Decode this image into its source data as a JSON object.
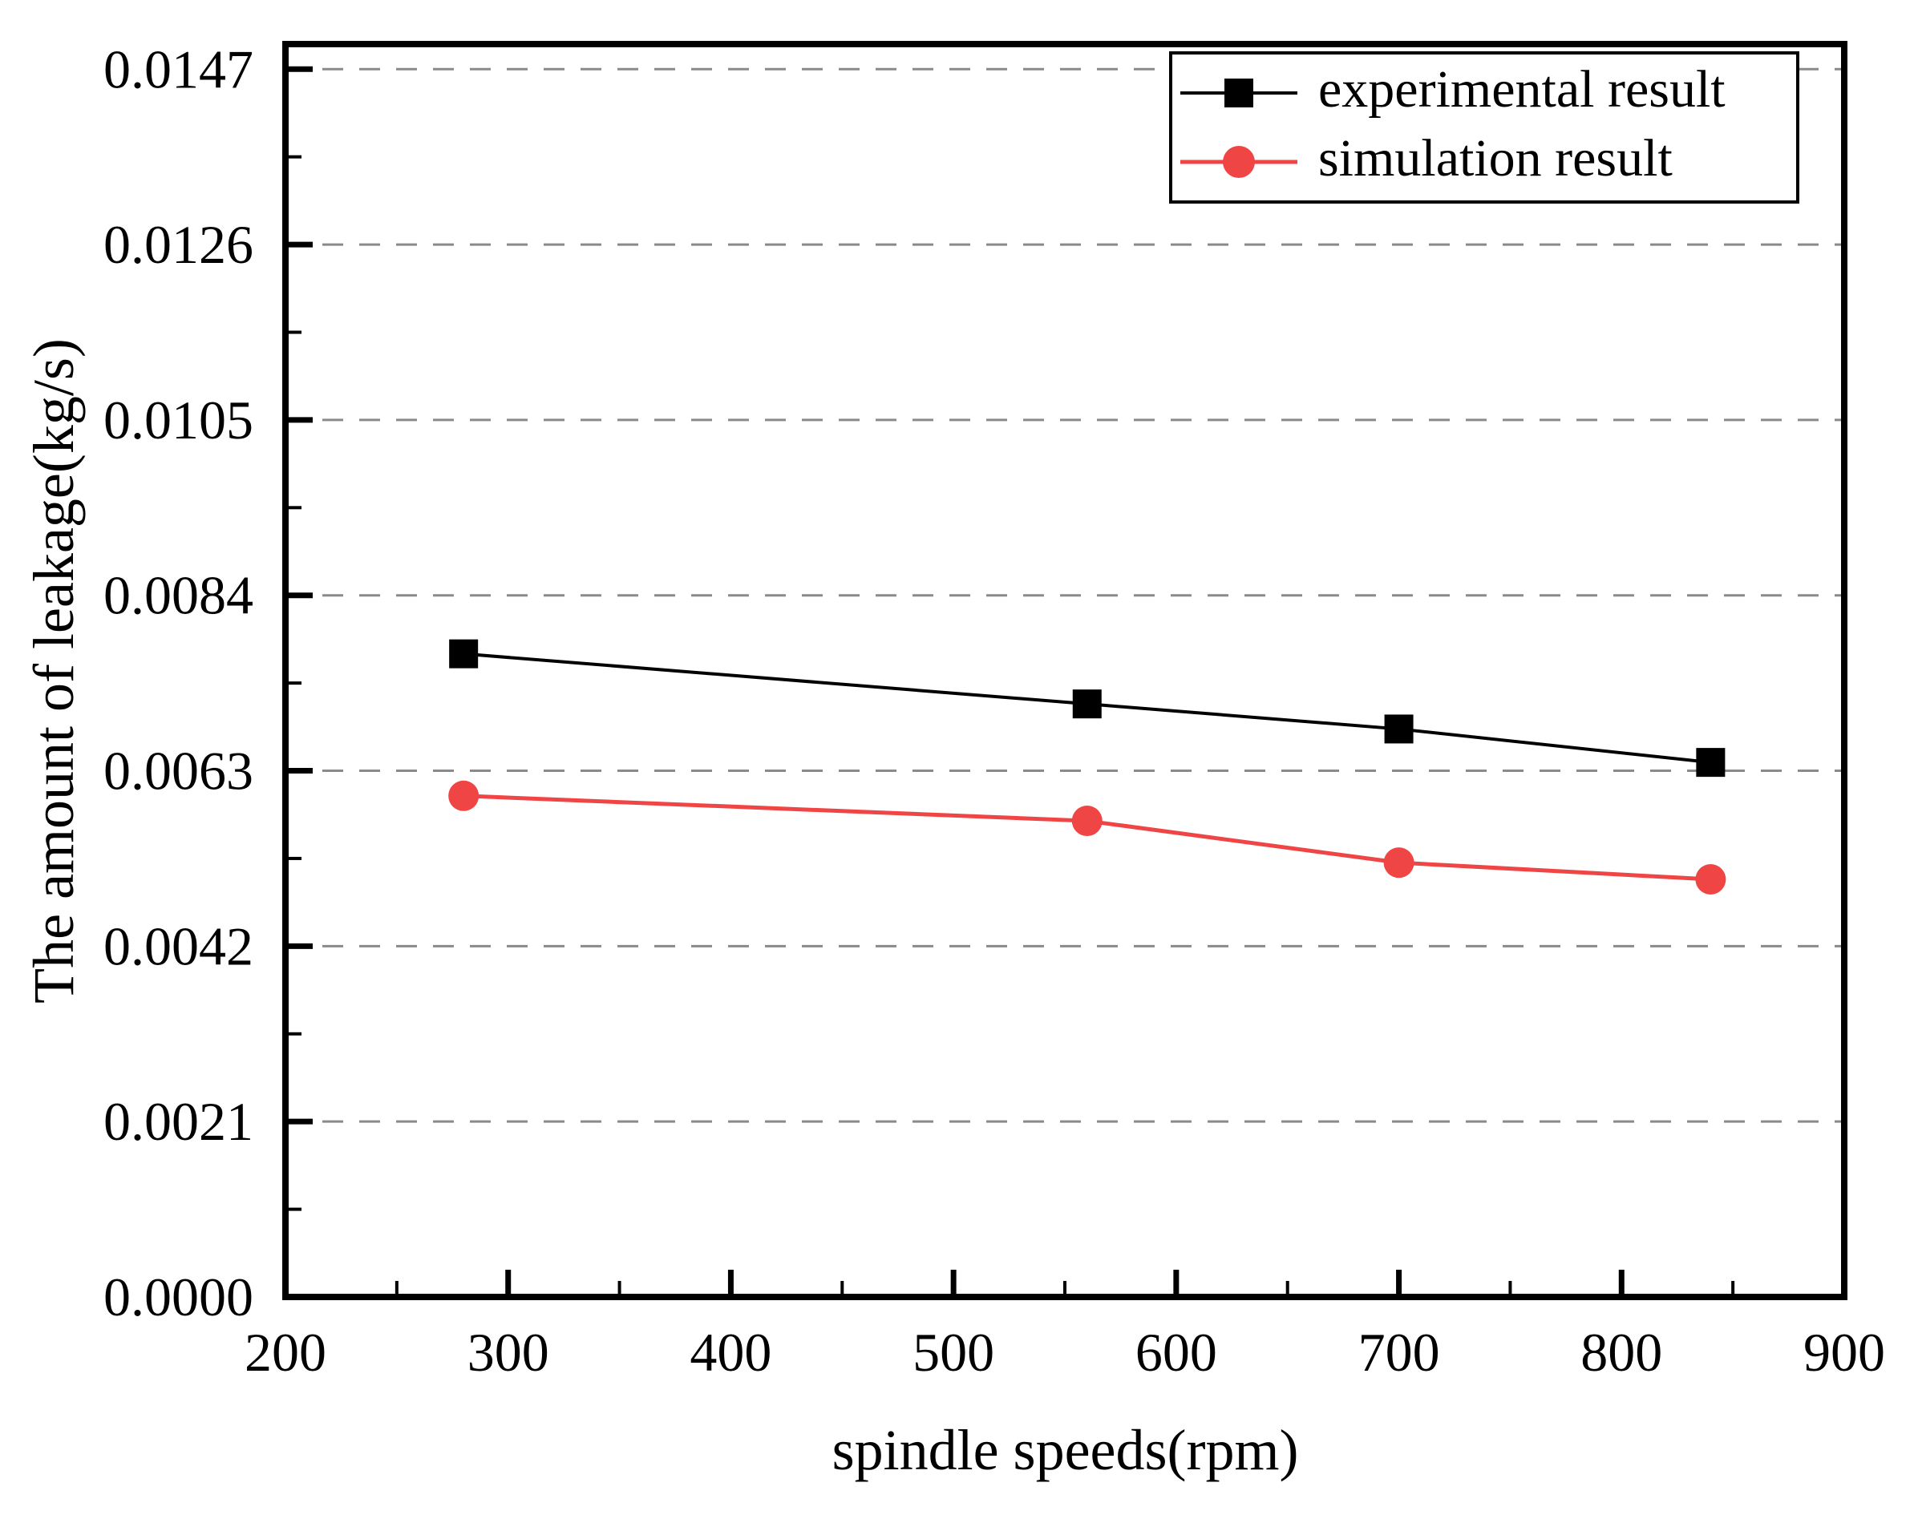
{
  "chart_data": {
    "type": "line",
    "title": "",
    "xlabel": "spindle speeds(rpm)",
    "ylabel": "The amount of leakage(kg/s)",
    "x": [
      280,
      560,
      700,
      840
    ],
    "series": [
      {
        "name": "experimental result",
        "marker": "square",
        "color": "#000000",
        "values": [
          0.0077,
          0.0071,
          0.0068,
          0.0064
        ]
      },
      {
        "name": "simulation result",
        "marker": "circle",
        "color": "#F04545",
        "values": [
          0.006,
          0.0057,
          0.0052,
          0.005
        ]
      }
    ],
    "xlim": [
      200,
      900
    ],
    "ylim": [
      0,
      0.015
    ],
    "x_major_ticks": [
      200,
      300,
      400,
      500,
      600,
      700,
      800,
      900
    ],
    "x_minor_step": 50,
    "y_major_ticks": [
      0.0,
      0.0021,
      0.0042,
      0.0063,
      0.0084,
      0.0105,
      0.0126,
      0.0147
    ],
    "y_minor_step": 0.00105,
    "grid": "horizontal-dashed",
    "grid_color": "#8a8a8a",
    "frame_color": "#000000",
    "background": "#ffffff",
    "legend_position": "top-right"
  }
}
